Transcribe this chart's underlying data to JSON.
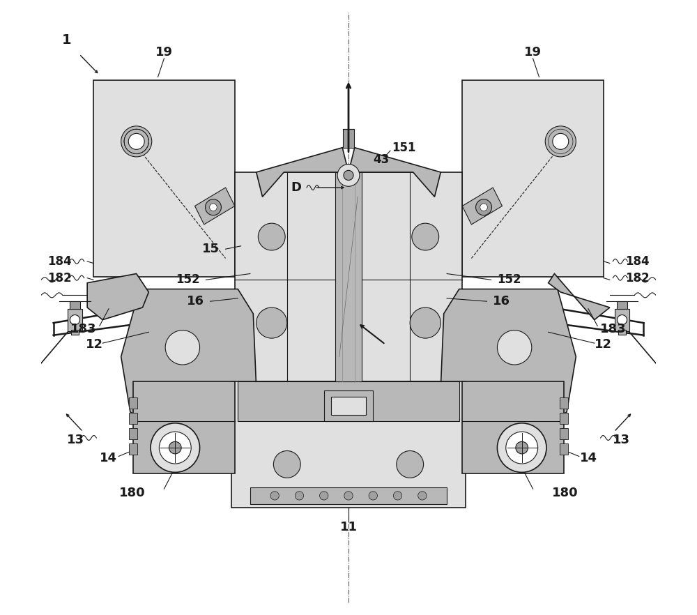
{
  "bg_color": "#ffffff",
  "line_color": "#1a1a1a",
  "label_color": "#000000",
  "fig_width": 10.0,
  "fig_height": 8.82,
  "gray_fill": "#c8c8c8",
  "gray_dark": "#a0a0a0",
  "gray_light": "#e0e0e0",
  "gray_mid": "#b8b8b8"
}
